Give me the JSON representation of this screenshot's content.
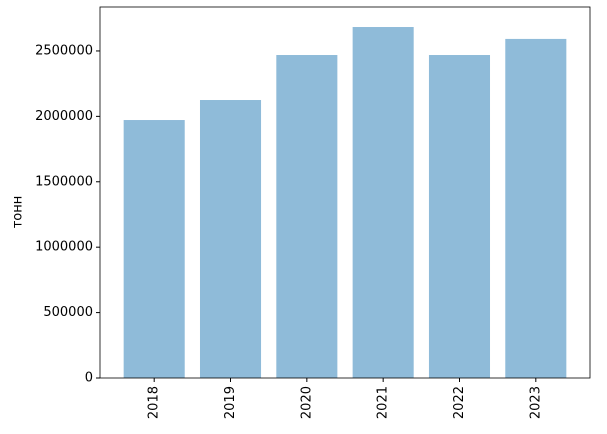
{
  "chart_data": {
    "type": "bar",
    "ylabel": "тонн",
    "categories": [
      "2018",
      "2019",
      "2020",
      "2021",
      "2022",
      "2023"
    ],
    "values": [
      1972000,
      2125000,
      2469000,
      2683000,
      2469000,
      2592000
    ],
    "color": "#8fbbd9",
    "ylim": [
      0,
      2836000
    ],
    "yticks": [
      0,
      500000,
      1000000,
      1500000,
      2000000,
      2500000
    ],
    "grid": false
  }
}
